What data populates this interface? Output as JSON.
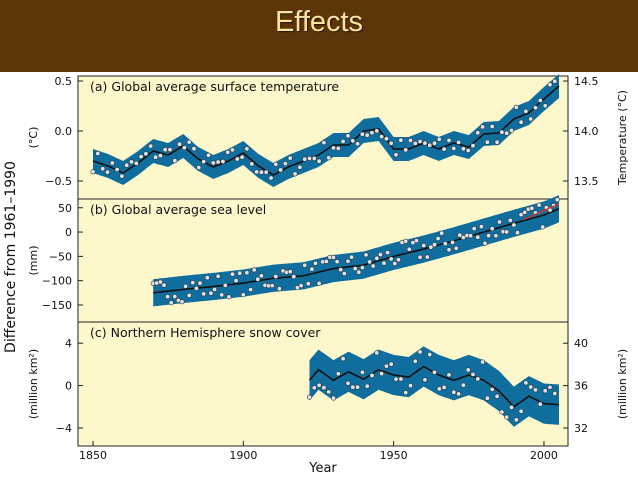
{
  "slide": {
    "title": "Effects"
  },
  "figure": {
    "shared_ylabel": "Difference from 1961–1990",
    "xlabel": "Year",
    "x_ticks": [
      1850,
      1900,
      1950,
      2000
    ]
  },
  "colors": {
    "panel_bg": "#fcf8cc",
    "band": "#0f6e9e",
    "line": "#101010",
    "point_fill": "#dde3ea",
    "title_bar": "#5c3609",
    "title_text": "#fbe3a6",
    "trend": "#d8342a"
  },
  "chart_data": [
    {
      "type": "line",
      "title": "(a) Global average surface temperature",
      "ylabel": "(°C)",
      "ylabel_right": "Temperature (°C)",
      "xlim": [
        1845,
        2008
      ],
      "ylim": [
        -0.68,
        0.55
      ],
      "yticks": [
        0.5,
        0.0,
        -0.5
      ],
      "yticks_labels": [
        "0.5",
        "0.0",
        "−0.5"
      ],
      "right_ticks": [
        14.5,
        14.0,
        13.5
      ],
      "right_offset": 14.0,
      "x": [
        1850,
        1855,
        1860,
        1865,
        1870,
        1875,
        1880,
        1885,
        1890,
        1895,
        1900,
        1905,
        1910,
        1915,
        1920,
        1925,
        1930,
        1935,
        1940,
        1945,
        1950,
        1955,
        1960,
        1965,
        1970,
        1975,
        1980,
        1985,
        1990,
        1995,
        2000,
        2005
      ],
      "y": [
        -0.3,
        -0.35,
        -0.42,
        -0.32,
        -0.2,
        -0.24,
        -0.15,
        -0.28,
        -0.36,
        -0.3,
        -0.22,
        -0.35,
        -0.44,
        -0.36,
        -0.3,
        -0.24,
        -0.14,
        -0.14,
        0.0,
        0.02,
        -0.18,
        -0.18,
        -0.12,
        -0.18,
        -0.12,
        -0.16,
        -0.03,
        -0.02,
        0.12,
        0.18,
        0.32,
        0.45
      ],
      "band_halfwidth": 0.12
    },
    {
      "type": "line",
      "title": "(b) Global average sea level",
      "ylabel": "(mm)",
      "xlim": [
        1845,
        2008
      ],
      "ylim": [
        -185,
        68
      ],
      "yticks": [
        50,
        0,
        -50,
        -100,
        -150
      ],
      "yticks_labels": [
        "50",
        "0",
        "−50",
        "−100",
        "−150"
      ],
      "x": [
        1870,
        1880,
        1890,
        1900,
        1910,
        1920,
        1930,
        1940,
        1950,
        1960,
        1970,
        1980,
        1990,
        2000,
        2005
      ],
      "y": [
        -125,
        -118,
        -112,
        -105,
        -95,
        -90,
        -75,
        -68,
        -50,
        -35,
        -18,
        0,
        18,
        35,
        48
      ],
      "band_halfwidth": 28,
      "trend_segment": {
        "x": [
          1993,
          2005
        ],
        "y": [
          25,
          58
        ]
      }
    },
    {
      "type": "line",
      "title": "(c) Northern Hemisphere snow cover",
      "ylabel": "(million km²)",
      "ylabel_right": "(million km²)",
      "xlim": [
        1845,
        2008
      ],
      "ylim": [
        -5.7,
        6
      ],
      "yticks": [
        4,
        0,
        -4
      ],
      "yticks_labels": [
        "4",
        "0",
        "−4"
      ],
      "right_ticks": [
        40,
        36,
        32
      ],
      "right_offset": 36,
      "x": [
        1922,
        1925,
        1930,
        1935,
        1940,
        1945,
        1950,
        1955,
        1960,
        1965,
        1970,
        1975,
        1980,
        1985,
        1990,
        1995,
        2000,
        2005
      ],
      "y": [
        0.5,
        1.5,
        0.5,
        1.3,
        0.6,
        1.5,
        1.0,
        0.8,
        1.8,
        1.0,
        0.5,
        1.0,
        0.5,
        -0.5,
        -2.0,
        -1.0,
        -1.7,
        -1.8
      ],
      "band_halfwidth": 1.9
    }
  ]
}
